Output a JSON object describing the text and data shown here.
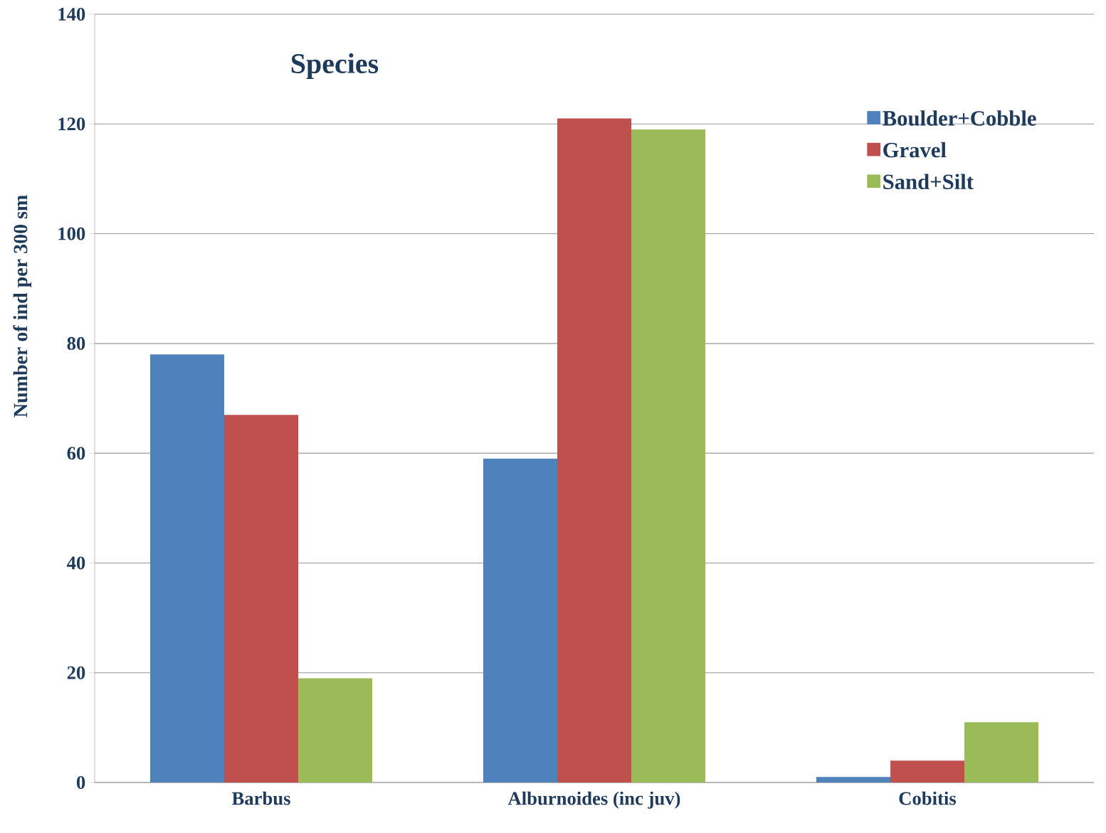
{
  "chart_data": {
    "type": "bar",
    "title": "Species",
    "ylabel": "Number of ind per 300 sm",
    "categories": [
      "Barbus",
      "Alburnoides (inc juv)",
      "Cobitis"
    ],
    "series": [
      {
        "name": "Boulder+Cobble",
        "color": "#4f81bd",
        "values": [
          78,
          59,
          1
        ]
      },
      {
        "name": "Gravel",
        "color": "#c0504d",
        "values": [
          67,
          121,
          4
        ]
      },
      {
        "name": "Sand+Silt",
        "color": "#9bbb59",
        "values": [
          19,
          119,
          11
        ]
      }
    ],
    "ylim": [
      0,
      140
    ],
    "yticks": [
      0,
      20,
      40,
      60,
      80,
      100,
      120,
      140
    ],
    "grid": "y",
    "legend": "top right"
  }
}
